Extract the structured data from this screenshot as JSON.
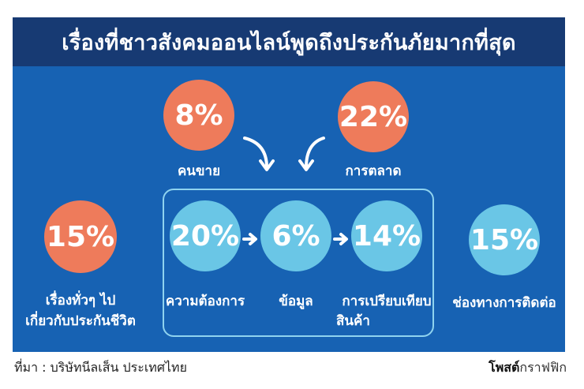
{
  "title": "เรื่องที่ชาวสังคมออนไลน์พูดถึงประกันภัยมากที่สุด",
  "items": {
    "salesperson": {
      "value": "8%",
      "label": "คนขาย"
    },
    "marketing": {
      "value": "22%",
      "label": "การตลาด"
    },
    "general": {
      "value": "15%",
      "label_line1": "เรื่องทั่วๆ ไป",
      "label_line2": "เกี่ยวกับประกันชีวิต"
    },
    "needs": {
      "value": "20%",
      "label": "ความต้องการ"
    },
    "information": {
      "value": "6%",
      "label": "ข้อมูล"
    },
    "comparison": {
      "value": "14%",
      "label_line1": "การเปรียบเทียบ",
      "label_line2": "สินค้า"
    },
    "contact": {
      "value": "15%",
      "label": "ช่องทางการติดต่อ"
    }
  },
  "source": "ที่มา : บริษัทนีลเส็น ประเทศไทย",
  "brand": {
    "bold": "โพสต์",
    "rest": "กราฟฟิก"
  },
  "colors": {
    "panel": "#1762b3",
    "titlebar": "#173a73",
    "orange": "#ee7b5b",
    "cyan": "#6ac6e6"
  }
}
